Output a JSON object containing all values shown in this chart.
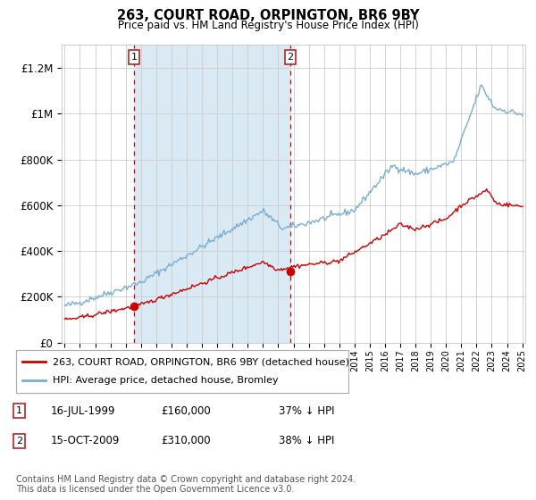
{
  "title": "263, COURT ROAD, ORPINGTON, BR6 9BY",
  "subtitle": "Price paid vs. HM Land Registry's House Price Index (HPI)",
  "legend_line1": "263, COURT ROAD, ORPINGTON, BR6 9BY (detached house)",
  "legend_line2": "HPI: Average price, detached house, Bromley",
  "annotation1_date": "16-JUL-1999",
  "annotation1_price": "£160,000",
  "annotation1_hpi": "37% ↓ HPI",
  "annotation2_date": "15-OCT-2009",
  "annotation2_price": "£310,000",
  "annotation2_hpi": "38% ↓ HPI",
  "footnote": "Contains HM Land Registry data © Crown copyright and database right 2024.\nThis data is licensed under the Open Government Licence v3.0.",
  "year_start": 1995,
  "year_end": 2025,
  "ylim_max": 1300000,
  "sale1_year": 1999.54,
  "sale1_price": 160000,
  "sale2_year": 2009.79,
  "sale2_price": 310000,
  "red_color": "#cc0000",
  "blue_color": "#7aadcf",
  "shade_color": "#daeaf5",
  "bg_color": "#ffffff",
  "grid_color": "#cccccc",
  "yticks": [
    0,
    200000,
    400000,
    600000,
    800000,
    1000000,
    1200000
  ],
  "ylabels": [
    "£0",
    "£200K",
    "£400K",
    "£600K",
    "£800K",
    "£1M",
    "£1.2M"
  ]
}
